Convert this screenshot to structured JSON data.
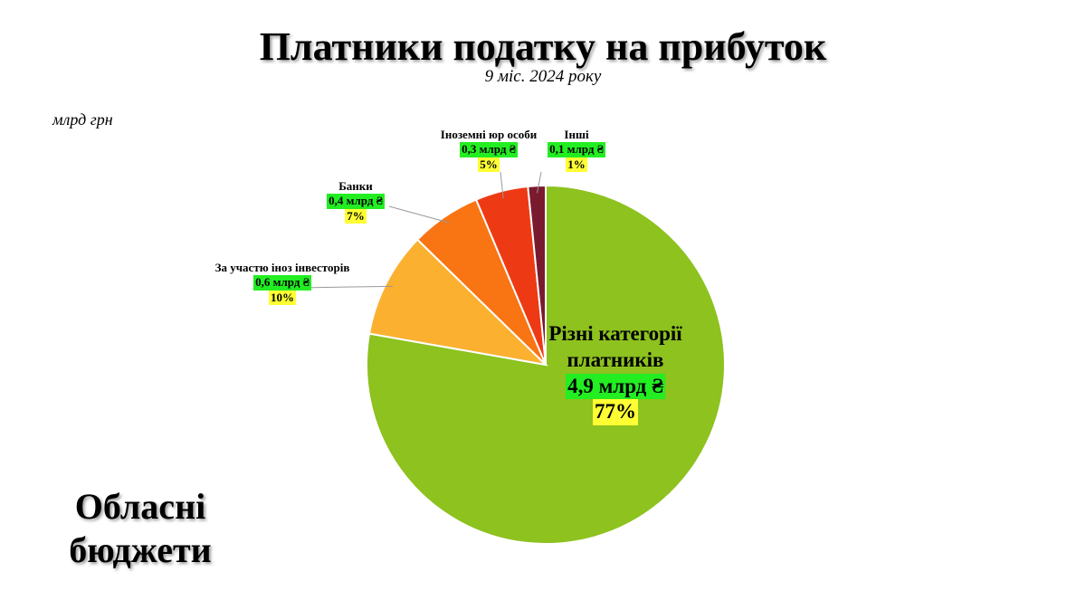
{
  "chart_data": {
    "type": "pie",
    "title": "Платники податку на прибуток",
    "subtitle": "9 міс. 2024 року",
    "unit_label": "млрд грн",
    "side_label": "Обласні бюджети",
    "categories": [
      "Різні категорії платників",
      "За участю іноз інвесторів",
      "Банки",
      "Іноземні юр особи",
      "Інші"
    ],
    "values": [
      4.9,
      0.6,
      0.4,
      0.3,
      0.1
    ],
    "value_labels": [
      "4,9 млрд ₴",
      "0,6 млрд ₴",
      "0,4 млрд ₴",
      "0,3 млрд ₴",
      "0,1 млрд ₴"
    ],
    "shares": [
      77,
      10,
      7,
      5,
      1
    ],
    "share_labels": [
      "77%",
      "10%",
      "7%",
      "5%",
      "1%"
    ],
    "colors": [
      "#8dc21f",
      "#fbb030",
      "#f97412",
      "#ee3a14",
      "#7a1a2e"
    ]
  }
}
